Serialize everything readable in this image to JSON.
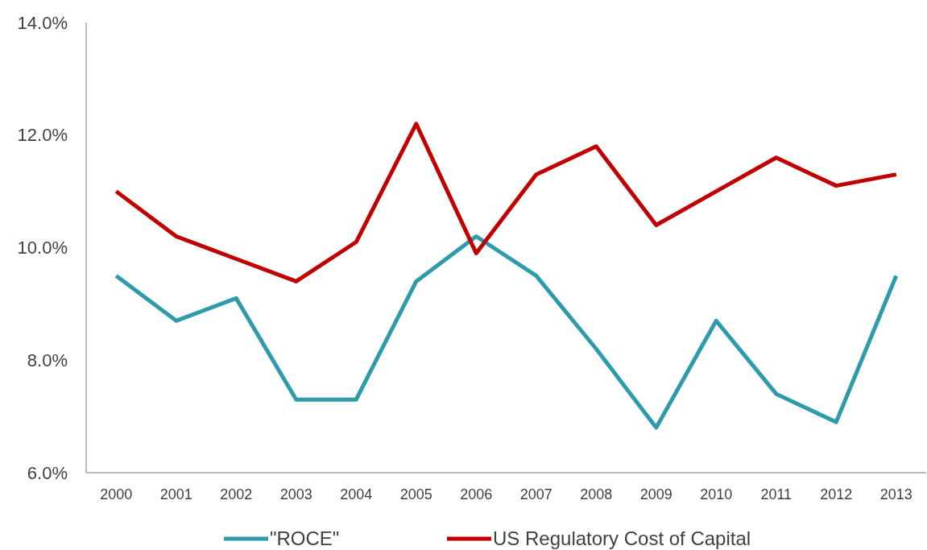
{
  "chart_data": {
    "type": "line",
    "categories": [
      "2000",
      "2001",
      "2002",
      "2003",
      "2004",
      "2005",
      "2006",
      "2007",
      "2008",
      "2009",
      "2010",
      "2011",
      "2012",
      "2013"
    ],
    "series": [
      {
        "name": "\"ROCE\"",
        "color": "#2e9bad",
        "values": [
          9.5,
          8.7,
          9.1,
          7.3,
          7.3,
          9.4,
          10.2,
          9.5,
          8.2,
          6.8,
          8.7,
          7.4,
          6.9,
          9.5
        ]
      },
      {
        "name": "US Regulatory Cost of Capital",
        "color": "#c00000",
        "values": [
          11.0,
          10.2,
          9.8,
          9.4,
          10.1,
          12.2,
          9.9,
          11.3,
          11.8,
          10.4,
          11.0,
          11.6,
          11.1,
          11.3
        ]
      }
    ],
    "ylim": [
      6,
      14
    ],
    "yticks": [
      {
        "value": 6,
        "label": "6.0%"
      },
      {
        "value": 8,
        "label": "8.0%"
      },
      {
        "value": 10,
        "label": "10.0%"
      },
      {
        "value": 12,
        "label": "12.0%"
      },
      {
        "value": 14,
        "label": "14.0%"
      }
    ],
    "grid": false,
    "legend": "bottom",
    "marker": "none",
    "line_style": "solid"
  }
}
